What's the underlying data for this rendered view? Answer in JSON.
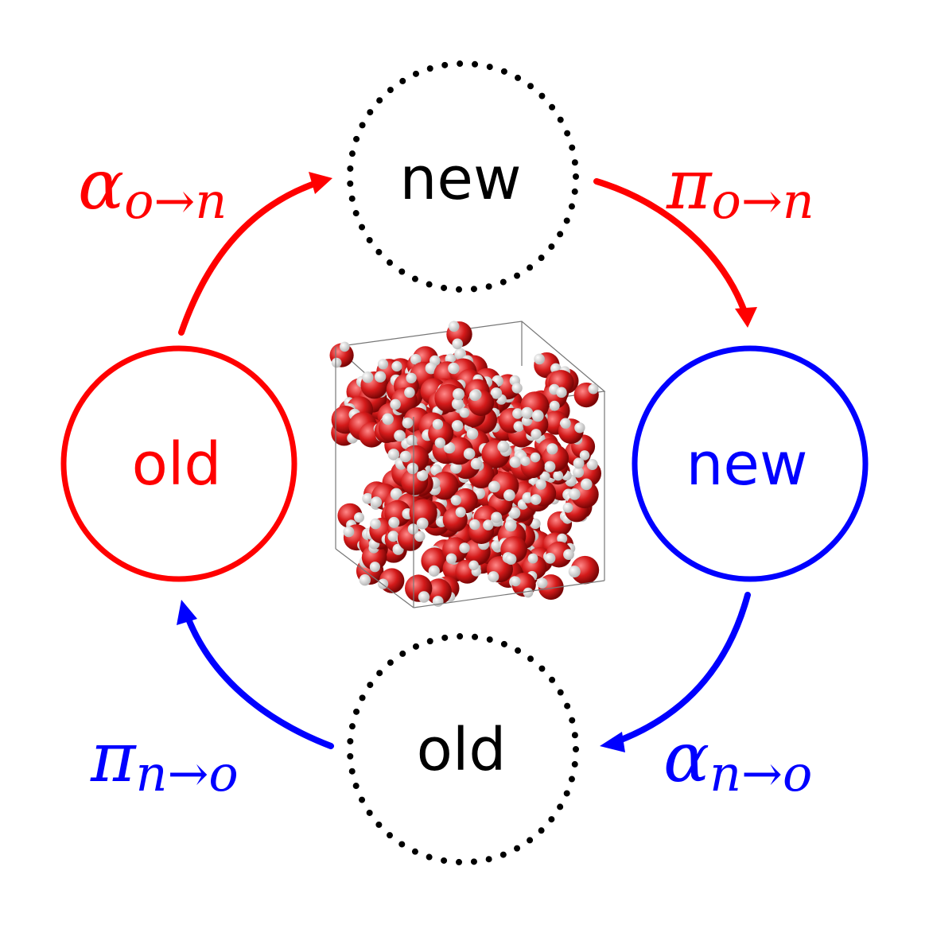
{
  "colors": {
    "old_state": "#ff0000",
    "new_state": "#0000ff",
    "proposal": "#000000",
    "molecule_oxygen": "#d41a1a",
    "molecule_hydrogen": "#f2f2f2"
  },
  "nodes": {
    "old_current": {
      "label": "old",
      "style": "solid"
    },
    "new_current": {
      "label": "new",
      "style": "solid"
    },
    "new_proposed": {
      "label": "new",
      "style": "dotted"
    },
    "old_proposed": {
      "label": "old",
      "style": "dotted"
    }
  },
  "edges": {
    "alpha_o_n": {
      "symbol": "α",
      "subscript": "o→n"
    },
    "pi_o_n": {
      "symbol": "π",
      "subscript": "o→n"
    },
    "alpha_n_o": {
      "symbol": "α",
      "subscript": "n→o"
    },
    "pi_n_o": {
      "symbol": "π",
      "subscript": "n→o"
    }
  },
  "center_image": {
    "icon": "water-molecules-box-icon"
  }
}
